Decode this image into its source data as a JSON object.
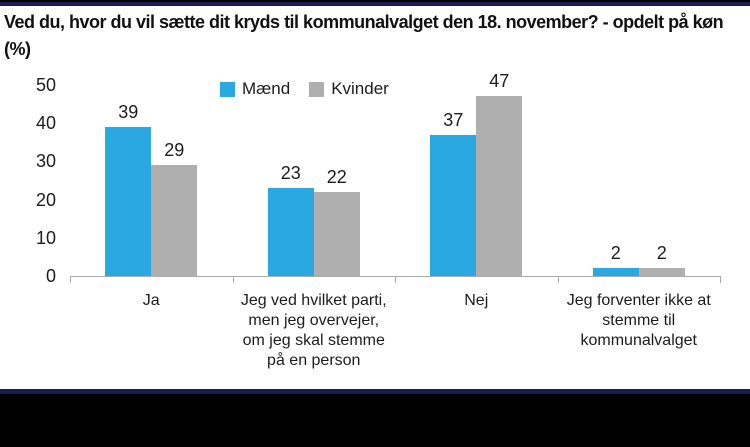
{
  "header": {
    "title": "Ved du, hvor du vil sætte dit kryds til kommunalvalget den 18. november?  - opdelt på køn (%)"
  },
  "chart_data": {
    "type": "bar",
    "title": "Ved du, hvor du vil sætte dit kryds til kommunalvalget den 18. november? - opdelt på køn (%)",
    "categories": [
      "Ja",
      "Jeg ved hvilket parti,\nmen jeg overvejer,\nom jeg skal stemme\npå en person",
      "Nej",
      "Jeg forventer ikke at\nstemme til\nkommunalvalget"
    ],
    "series": [
      {
        "name": "Mænd",
        "color": "#29a8e1",
        "values": [
          39,
          23,
          37,
          2
        ]
      },
      {
        "name": "Kvinder",
        "color": "#afafaf",
        "values": [
          29,
          22,
          47,
          2
        ]
      }
    ],
    "ylim": [
      0,
      50
    ],
    "y_ticks": [
      0,
      10,
      20,
      30,
      40,
      50
    ],
    "grid": false,
    "legend_position": "top",
    "bar_value_labels": true
  },
  "colors": {
    "accent_blue": "#29a8e1",
    "series_gray": "#afafaf",
    "axis_gray": "#a9a9a9",
    "navy_strip": "#1b1c52",
    "black_strip": "#000000"
  }
}
